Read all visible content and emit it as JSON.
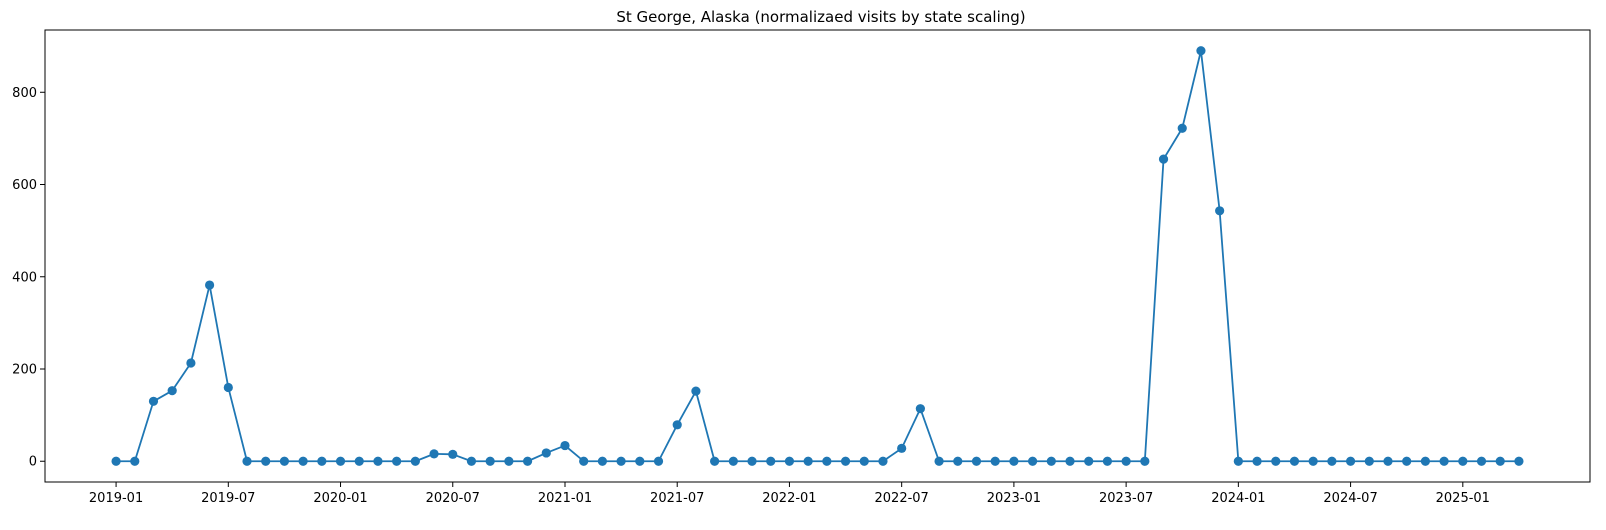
{
  "chart_data": {
    "type": "line",
    "title": "St George, Alaska (normalizaed visits by state scaling)",
    "xlabel": "",
    "ylabel": "",
    "x_start": "2019-01",
    "x_tick_labels": [
      "2019-01",
      "2019-07",
      "2020-01",
      "2020-07",
      "2021-01",
      "2021-07",
      "2022-01",
      "2022-07",
      "2023-01",
      "2023-07",
      "2024-01",
      "2024-07",
      "2025-01"
    ],
    "y_ticks": [
      0,
      200,
      400,
      600,
      800
    ],
    "ylim": [
      -45,
      935
    ],
    "grid": false,
    "legend": "none",
    "series": [
      {
        "color": "#1f77b4",
        "marker": "circle",
        "x": [
          "2019-01",
          "2019-02",
          "2019-03",
          "2019-04",
          "2019-05",
          "2019-06",
          "2019-07",
          "2019-08",
          "2019-09",
          "2019-10",
          "2019-11",
          "2019-12",
          "2020-01",
          "2020-02",
          "2020-03",
          "2020-04",
          "2020-05",
          "2020-06",
          "2020-07",
          "2020-08",
          "2020-09",
          "2020-10",
          "2020-11",
          "2020-12",
          "2021-01",
          "2021-02",
          "2021-03",
          "2021-04",
          "2021-05",
          "2021-06",
          "2021-07",
          "2021-08",
          "2021-09",
          "2021-10",
          "2021-11",
          "2021-12",
          "2022-01",
          "2022-02",
          "2022-03",
          "2022-04",
          "2022-05",
          "2022-06",
          "2022-07",
          "2022-08",
          "2022-09",
          "2022-10",
          "2022-11",
          "2022-12",
          "2023-01",
          "2023-02",
          "2023-03",
          "2023-04",
          "2023-05",
          "2023-06",
          "2023-07",
          "2023-08",
          "2023-09",
          "2023-10",
          "2023-11",
          "2023-12",
          "2024-01",
          "2024-02",
          "2024-03",
          "2024-04",
          "2024-05",
          "2024-06",
          "2024-07",
          "2024-08",
          "2024-09",
          "2024-10",
          "2024-11",
          "2024-12",
          "2025-01",
          "2025-02",
          "2025-03",
          "2025-04"
        ],
        "values": [
          0,
          0,
          130,
          153,
          213,
          382,
          160,
          0,
          0,
          0,
          0,
          0,
          0,
          0,
          0,
          0,
          0,
          16,
          15,
          0,
          0,
          0,
          0,
          18,
          34,
          0,
          0,
          0,
          0,
          0,
          79,
          152,
          0,
          0,
          0,
          0,
          0,
          0,
          0,
          0,
          0,
          0,
          28,
          114,
          0,
          0,
          0,
          0,
          0,
          0,
          0,
          0,
          0,
          0,
          0,
          0,
          655,
          722,
          890,
          543,
          0,
          0,
          0,
          0,
          0,
          0,
          0,
          0,
          0,
          0,
          0,
          0,
          0,
          0,
          0,
          0
        ]
      }
    ]
  }
}
